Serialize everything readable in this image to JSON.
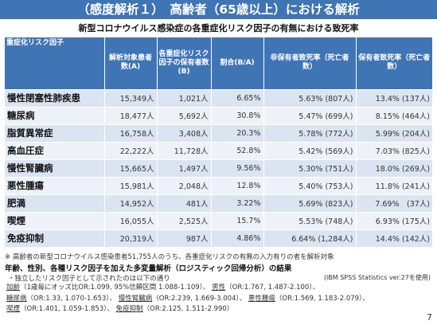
{
  "banner": {
    "title": "（感度解析１）　高齢者（65歳以上）における解析"
  },
  "subtitle": "新型コロナウイルス感染症の各重症化リスク因子の有無における致死率",
  "table": {
    "headers": [
      "重症化リスク因子",
      "解析対象患者数(A)",
      "各重症化リスク因子の保有者数(B)",
      "割合(B/A)",
      "非保有者致死率（死亡者数）",
      "保有者致死率（死亡者数）"
    ],
    "rows": [
      {
        "factor": "慢性閉塞性肺疾患",
        "patients": "15,349人",
        "holders": "1,021人",
        "ratio": "6.65%",
        "non_holder_rate": "5.63% (807人)",
        "holder_rate": "13.4% (137人)"
      },
      {
        "factor": "糖尿病",
        "patients": "18,477人",
        "holders": "5,692人",
        "ratio": "30.8%",
        "non_holder_rate": "5.47% (699人)",
        "holder_rate": "8.15% (464人)"
      },
      {
        "factor": "脂質異常症",
        "patients": "16,758人",
        "holders": "3,408人",
        "ratio": "20.3%",
        "non_holder_rate": "5.78% (772人)",
        "holder_rate": "5.99% (204人)"
      },
      {
        "factor": "高血圧症",
        "patients": "22,222人",
        "holders": "11,728人",
        "ratio": "52.8%",
        "non_holder_rate": "5.42% (569人)",
        "holder_rate": "7.03% (825人)"
      },
      {
        "factor": "慢性腎臓病",
        "patients": "15,665人",
        "holders": "1,497人",
        "ratio": "9.56%",
        "non_holder_rate": "5.30% (751人)",
        "holder_rate": "18.0% (269人)"
      },
      {
        "factor": "悪性腫瘍",
        "patients": "15,981人",
        "holders": "2,048人",
        "ratio": "12.8%",
        "non_holder_rate": "5.40% (753人)",
        "holder_rate": "11.8% (241人)"
      },
      {
        "factor": "肥満",
        "patients": "14,952人",
        "holders": "481人",
        "ratio": "3.22%",
        "non_holder_rate": "5.69% (823人)",
        "holder_rate": "7.69%　(37人)"
      },
      {
        "factor": "喫煙",
        "patients": "16,055人",
        "holders": "2,525人",
        "ratio": "15.7%",
        "non_holder_rate": "5.53% (748人)",
        "holder_rate": "6.93% (175人)"
      },
      {
        "factor": "免疫抑制",
        "patients": "20,319人",
        "holders": "987人",
        "ratio": "4.86%",
        "non_holder_rate": "6.64% (1,284人)",
        "holder_rate": "14.4% (142人)"
      }
    ]
  },
  "note": "※ 高齢者の新型コロナウイルス感染患者51,755人のうち、各重症化リスクの有無の入力有りの者を解析対象",
  "heading2": "年齢、性別、各種リスク因子を加えた多変量解析（ロジスティック回帰分析）の結果",
  "bullet": "・独立したリスク因子として示されたのは以下の通り",
  "method": "(IBM SPSS Statistics ver.27を使用)",
  "factors": [
    {
      "name": "加齢",
      "stat": "（1歳毎にオッズ比OR:1.099, 95%信頼区間 1.088-1.109）、"
    },
    {
      "name": "男性",
      "stat": "（OR:1.767, 1.487-2.100）、"
    },
    {
      "name": "糖尿病",
      "stat": "（OR:1.33, 1.070-1.653）、"
    },
    {
      "name": "慢性腎臓病",
      "stat": "（OR:2.239, 1.669-3.004）、"
    },
    {
      "name": "悪性腫瘍",
      "stat": "（OR:1.569, 1.183-2.079）、"
    },
    {
      "name": "喫煙",
      "stat": "（OR:1.401, 1.059-1.853）、"
    },
    {
      "name": "免疫抑制",
      "stat": "（OR:2.125, 1.511-2.990）"
    }
  ],
  "page_number": "7"
}
